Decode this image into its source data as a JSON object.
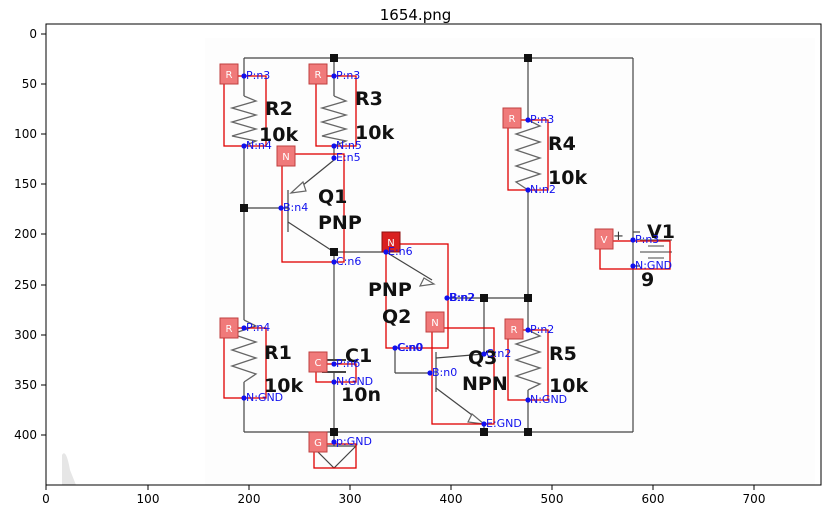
{
  "figure": {
    "title": "1654.png"
  },
  "axes": {
    "x_ticks": [
      "0",
      "100",
      "200",
      "300",
      "400",
      "500",
      "600",
      "700"
    ],
    "y_ticks": [
      "0",
      "50",
      "100",
      "150",
      "200",
      "250",
      "300",
      "350",
      "400"
    ]
  },
  "components": [
    {
      "id": "R2",
      "ref": "R2",
      "value": "10k",
      "badge": "R",
      "pins": [
        "P:n3",
        "N:n4"
      ]
    },
    {
      "id": "R3",
      "ref": "R3",
      "value": "10k",
      "badge": "R",
      "pins": [
        "P:n3",
        "N:n5"
      ]
    },
    {
      "id": "R4",
      "ref": "R4",
      "value": "10k",
      "badge": "R",
      "pins": [
        "P:n3",
        "N:n2"
      ]
    },
    {
      "id": "Q1",
      "ref": "Q1",
      "value": "PNP",
      "badge": "N",
      "pins": [
        "E:n5",
        "B:n4",
        "C:n6"
      ]
    },
    {
      "id": "Q2",
      "ref": "Q2",
      "value": "PNP",
      "badge": "N",
      "pins": [
        "E:n6",
        "B:n2",
        "C:n0"
      ]
    },
    {
      "id": "Q3",
      "ref": "Q3",
      "value": "NPN",
      "badge": "N",
      "pins": [
        "C:n2",
        "B:n0",
        "E:GND"
      ]
    },
    {
      "id": "V1",
      "ref": "V1",
      "value": "9",
      "badge": "V",
      "pins": [
        "P:n3",
        "N:GND"
      ]
    },
    {
      "id": "R1",
      "ref": "R1",
      "value": "10k",
      "badge": "R",
      "pins": [
        "P:n4",
        "N:GND"
      ]
    },
    {
      "id": "C1",
      "ref": "C1",
      "value": "10n",
      "badge": "C",
      "pins": [
        "P:n6",
        "N:GND"
      ]
    },
    {
      "id": "R5",
      "ref": "R5",
      "value": "10k",
      "badge": "R",
      "pins": [
        "P:n2",
        "N:GND"
      ]
    },
    {
      "id": "GND",
      "ref": "",
      "value": "",
      "badge": "G",
      "pins": [
        "p:GND"
      ]
    }
  ],
  "extra_labels": {
    "q2_base_dup": "B:n2",
    "q2_coll_dup": "C:n0",
    "v1_plus": "+"
  },
  "colors": {
    "wire": "#444444",
    "box": "#e00000",
    "badge": "#f07a7a",
    "badge_active": "#d92020",
    "net": "#1010ee"
  }
}
